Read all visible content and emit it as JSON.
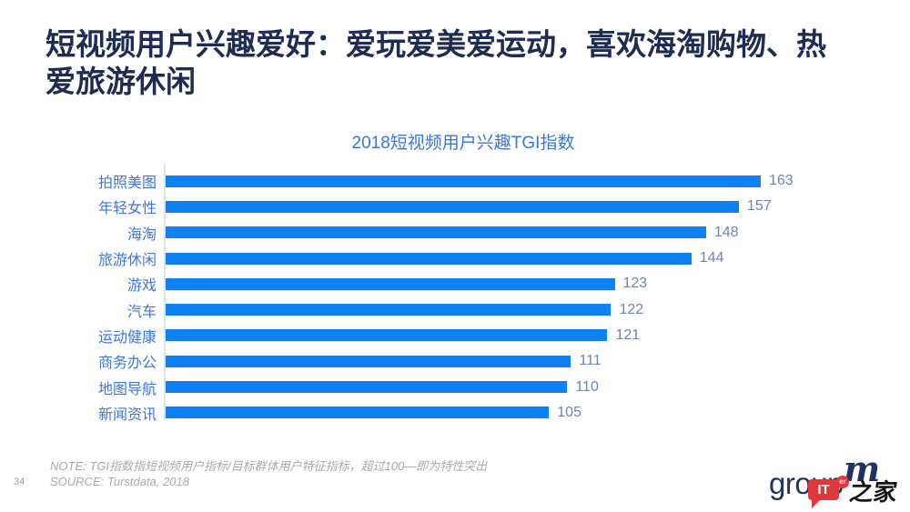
{
  "slide": {
    "title": "短视频用户兴趣爱好：爱玩爱美爱运动，喜欢海淘购物、热爱旅游休闲",
    "page_number": "34",
    "note": "NOTE: TGI指数指短视频用户指标/目标群体用户特征指标，超过100—即为特性突出",
    "source": "SOURCE: Turstdata, 2018"
  },
  "colors": {
    "slide_title": "#1D2C50",
    "axis_line": "#DCE3EC",
    "footer_text": "#A9A9A9"
  },
  "chart_data": {
    "type": "bar",
    "orientation": "horizontal",
    "title": "2018短视频用户兴趣TGI指数",
    "categories": [
      "拍照美图",
      "年轻女性",
      "海淘",
      "旅游休闲",
      "游戏",
      "汽车",
      "运动健康",
      "商务办公",
      "地图导航",
      "新闻资讯"
    ],
    "values": [
      163,
      157,
      148,
      144,
      123,
      122,
      121,
      111,
      110,
      105
    ],
    "xlim": [
      0,
      163
    ],
    "grid": false,
    "legend": false,
    "value_labels": "outside-end",
    "bar_color": "#0E80F4",
    "category_label_color": "#3F75DB",
    "value_label_color": "#6C84B4",
    "title_color": "#3A76E0"
  },
  "logo": {
    "brand_group": "group",
    "brand_m": "m",
    "watermark_it": "IT",
    "watermark_er": "er",
    "watermark_home": "之家"
  }
}
